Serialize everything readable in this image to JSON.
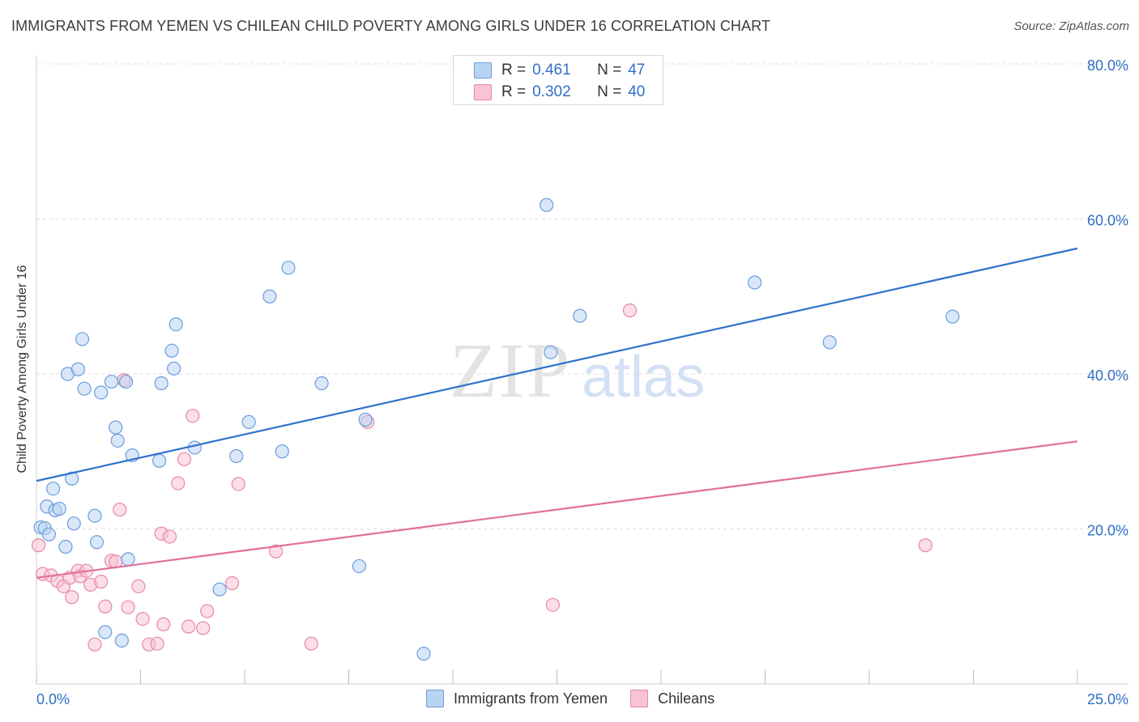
{
  "header": {
    "title": "IMMIGRANTS FROM YEMEN VS CHILEAN CHILD POVERTY AMONG GIRLS UNDER 16 CORRELATION CHART",
    "source": "Source: ZipAtlas.com"
  },
  "watermark": {
    "zip": "ZIP",
    "atlas": "atlas"
  },
  "legend": {
    "series1": {
      "r_label": "R =",
      "r_value": "0.461",
      "n_label": "N =",
      "n_value": "47"
    },
    "series2": {
      "r_label": "R =",
      "r_value": "0.302",
      "n_label": "N =",
      "n_value": "40"
    }
  },
  "colors": {
    "blue_fill": "#b9d3f3",
    "blue_stroke": "#6b9ddc",
    "blue_line": "#2f72cc",
    "pink_fill": "#f8c3d3",
    "pink_stroke": "#e888a8",
    "pink_line": "#e0709a",
    "tick_text": "#2f6fc6",
    "grid": "#dcdcdc"
  },
  "chart_data": {
    "type": "scatter",
    "title": "IMMIGRANTS FROM YEMEN VS CHILEAN CHILD POVERTY AMONG GIRLS UNDER 16 CORRELATION CHART",
    "xlabel": "",
    "ylabel": "Child Poverty Among Girls Under 16",
    "xlim": [
      0,
      25
    ],
    "ylim": [
      0,
      80
    ],
    "x_tick_labels": [
      "0.0%",
      "25.0%"
    ],
    "y_ticks": [
      20,
      40,
      60,
      80
    ],
    "y_tick_labels": [
      "20.0%",
      "40.0%",
      "60.0%",
      "80.0%"
    ],
    "grid": true,
    "legend_position": "top-center",
    "series": [
      {
        "name": "Immigrants from Yemen",
        "color": "#6b9ddc",
        "trend": {
          "x": [
            0,
            25
          ],
          "y": [
            26.2,
            56.2
          ]
        },
        "points": [
          {
            "x": 0.1,
            "y": 20.2
          },
          {
            "x": 0.2,
            "y": 20.1
          },
          {
            "x": 0.25,
            "y": 22.9
          },
          {
            "x": 0.3,
            "y": 19.3
          },
          {
            "x": 0.4,
            "y": 25.2
          },
          {
            "x": 0.45,
            "y": 22.4
          },
          {
            "x": 0.55,
            "y": 22.6
          },
          {
            "x": 0.7,
            "y": 17.7
          },
          {
            "x": 0.75,
            "y": 40.0
          },
          {
            "x": 0.85,
            "y": 26.5
          },
          {
            "x": 0.9,
            "y": 20.7
          },
          {
            "x": 1.0,
            "y": 40.6
          },
          {
            "x": 1.1,
            "y": 44.5
          },
          {
            "x": 1.15,
            "y": 38.1
          },
          {
            "x": 1.4,
            "y": 21.7
          },
          {
            "x": 1.45,
            "y": 18.3
          },
          {
            "x": 1.55,
            "y": 37.6
          },
          {
            "x": 1.65,
            "y": 6.7
          },
          {
            "x": 1.8,
            "y": 39.0
          },
          {
            "x": 1.9,
            "y": 33.1
          },
          {
            "x": 1.95,
            "y": 31.4
          },
          {
            "x": 2.05,
            "y": 5.6
          },
          {
            "x": 2.15,
            "y": 39.0
          },
          {
            "x": 2.2,
            "y": 16.1
          },
          {
            "x": 2.3,
            "y": 29.5
          },
          {
            "x": 2.95,
            "y": 28.8
          },
          {
            "x": 3.0,
            "y": 38.8
          },
          {
            "x": 3.25,
            "y": 43.0
          },
          {
            "x": 3.3,
            "y": 40.7
          },
          {
            "x": 3.35,
            "y": 46.4
          },
          {
            "x": 3.8,
            "y": 30.5
          },
          {
            "x": 4.4,
            "y": 12.2
          },
          {
            "x": 4.8,
            "y": 29.4
          },
          {
            "x": 5.1,
            "y": 33.8
          },
          {
            "x": 5.9,
            "y": 30.0
          },
          {
            "x": 5.6,
            "y": 50.0
          },
          {
            "x": 6.05,
            "y": 53.7
          },
          {
            "x": 6.85,
            "y": 38.8
          },
          {
            "x": 7.75,
            "y": 15.2
          },
          {
            "x": 7.9,
            "y": 34.1
          },
          {
            "x": 9.3,
            "y": 3.9
          },
          {
            "x": 12.25,
            "y": 61.8
          },
          {
            "x": 12.35,
            "y": 42.8
          },
          {
            "x": 13.05,
            "y": 47.5
          },
          {
            "x": 17.25,
            "y": 51.8
          },
          {
            "x": 19.05,
            "y": 44.1
          },
          {
            "x": 22.0,
            "y": 47.4
          }
        ]
      },
      {
        "name": "Chileans",
        "color": "#e888a8",
        "trend": {
          "x": [
            0,
            25
          ],
          "y": [
            13.7,
            31.3
          ]
        },
        "points": [
          {
            "x": 0.05,
            "y": 17.9
          },
          {
            "x": 0.15,
            "y": 14.2
          },
          {
            "x": 0.35,
            "y": 14.0
          },
          {
            "x": 0.5,
            "y": 13.3
          },
          {
            "x": 0.65,
            "y": 12.6
          },
          {
            "x": 0.8,
            "y": 13.7
          },
          {
            "x": 0.85,
            "y": 11.2
          },
          {
            "x": 1.0,
            "y": 14.6
          },
          {
            "x": 1.05,
            "y": 13.9
          },
          {
            "x": 1.2,
            "y": 14.6
          },
          {
            "x": 1.3,
            "y": 12.8
          },
          {
            "x": 1.4,
            "y": 5.1
          },
          {
            "x": 1.55,
            "y": 13.2
          },
          {
            "x": 1.65,
            "y": 10.0
          },
          {
            "x": 1.8,
            "y": 15.9
          },
          {
            "x": 1.9,
            "y": 15.8
          },
          {
            "x": 2.0,
            "y": 22.5
          },
          {
            "x": 2.1,
            "y": 39.2
          },
          {
            "x": 2.2,
            "y": 9.9
          },
          {
            "x": 2.45,
            "y": 12.6
          },
          {
            "x": 2.55,
            "y": 8.4
          },
          {
            "x": 2.7,
            "y": 5.1
          },
          {
            "x": 2.9,
            "y": 5.2
          },
          {
            "x": 3.0,
            "y": 19.4
          },
          {
            "x": 3.05,
            "y": 7.7
          },
          {
            "x": 3.2,
            "y": 19.0
          },
          {
            "x": 3.4,
            "y": 25.9
          },
          {
            "x": 3.55,
            "y": 29.0
          },
          {
            "x": 3.65,
            "y": 7.4
          },
          {
            "x": 3.75,
            "y": 34.6
          },
          {
            "x": 4.0,
            "y": 7.2
          },
          {
            "x": 4.1,
            "y": 9.4
          },
          {
            "x": 4.7,
            "y": 13.0
          },
          {
            "x": 4.85,
            "y": 25.8
          },
          {
            "x": 5.75,
            "y": 17.1
          },
          {
            "x": 6.6,
            "y": 5.2
          },
          {
            "x": 7.95,
            "y": 33.8
          },
          {
            "x": 12.4,
            "y": 10.2
          },
          {
            "x": 14.25,
            "y": 48.2
          },
          {
            "x": 21.35,
            "y": 17.9
          }
        ]
      }
    ]
  }
}
